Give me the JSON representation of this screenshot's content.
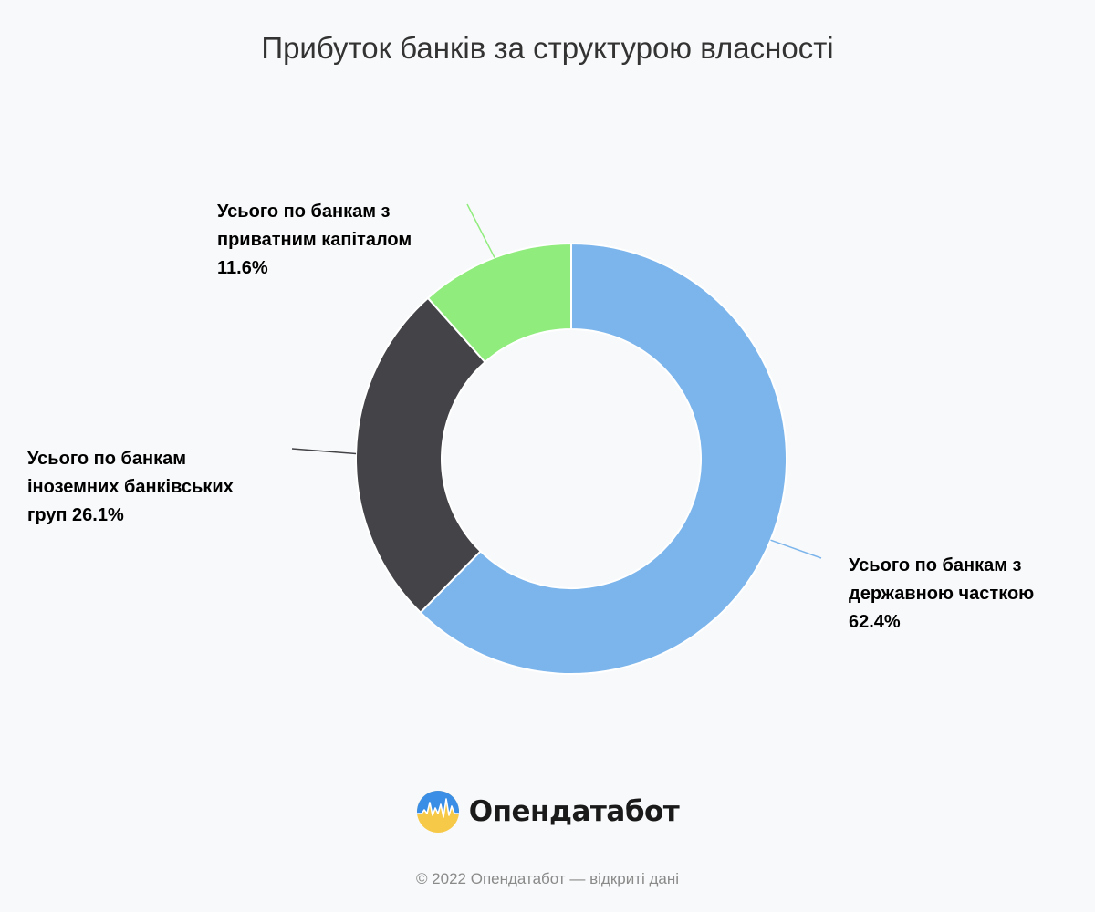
{
  "chart_data": {
    "type": "pie",
    "variant": "donut",
    "title": "Прибуток банків за структурою власності",
    "slices": [
      {
        "label_lines": [
          "Усього по банкам з",
          "державною часткою",
          "62.4%"
        ],
        "value": 62.4,
        "color": "#7cb5ec"
      },
      {
        "label_lines": [
          "Усього по банкам",
          "іноземних банківських",
          "груп 26.1%"
        ],
        "value": 26.1,
        "color": "#434348"
      },
      {
        "label_lines": [
          "Усього по банкам з",
          "приватним капіталом",
          "11.6%"
        ],
        "value": 11.6,
        "color": "#90ed7d"
      }
    ],
    "legend": "none",
    "grid": false
  },
  "brand": {
    "name": "Опендатабот"
  },
  "footer": {
    "text": "© 2022 Опендатабот — відкриті дані"
  }
}
